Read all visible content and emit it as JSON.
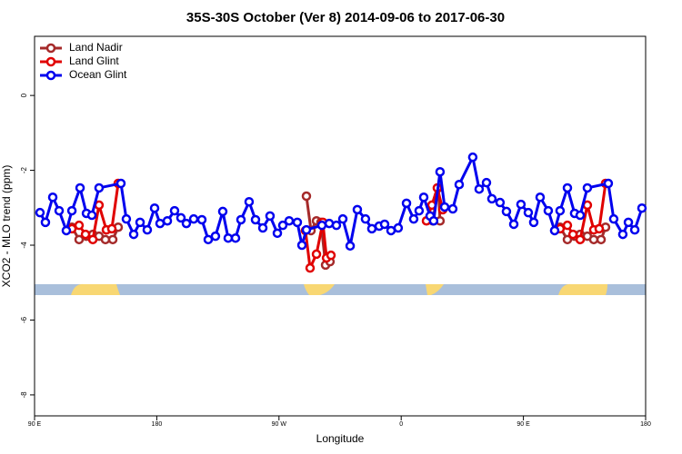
{
  "chart_data": {
    "type": "line",
    "title": "35S-30S October (Ver 8)   2014-09-06 to 2017-06-30",
    "x_label": "Longitude",
    "y_label": "XCO2 - MLO trend (ppm)",
    "xlim": [
      90,
      540
    ],
    "xticks": [
      {
        "value": 90,
        "label": "90 E"
      },
      {
        "value": 180,
        "label": "180"
      },
      {
        "value": 270,
        "label": "90 W"
      },
      {
        "value": 360,
        "label": "0"
      },
      {
        "value": 450,
        "label": "90 E"
      },
      {
        "value": 540,
        "label": "180"
      }
    ],
    "ylim": [
      -8.56,
      1.58
    ],
    "yticks": [
      0,
      -2,
      -4,
      -6,
      -8
    ],
    "legend": "top-left",
    "series": [
      {
        "name": "Land Nadir",
        "color": "#a52a2a",
        "x": [
          117.5,
          122.8,
          128.2,
          132.9,
          137.5,
          142.2,
          147.6,
          151.6,
          null,
          290.2,
          293.6,
          297.6,
          300.9,
          304.3,
          307.6,
          null,
          383.3,
          387.3,
          388.6,
          null,
          477.0,
          482.4,
          487.7,
          491.8,
          497.1,
          501.8,
          507.2,
          510.5
        ],
        "values": [
          -3.52,
          -3.85,
          -3.76,
          -3.71,
          -3.76,
          -3.85,
          -3.85,
          -3.52,
          null,
          -2.69,
          -3.61,
          -3.35,
          -3.39,
          -4.53,
          -4.44,
          null,
          -3.35,
          -2.47,
          -3.35,
          null,
          -3.52,
          -3.85,
          -3.76,
          -3.71,
          -3.76,
          -3.85,
          -3.85,
          -3.52
        ]
      },
      {
        "name": "Land Glint",
        "color": "#e00000",
        "x": [
          117.5,
          122.8,
          127.5,
          132.9,
          137.5,
          142.9,
          146.9,
          151.6,
          null,
          289.5,
          292.9,
          297.6,
          302.3,
          305.0,
          308.3,
          null,
          378.6,
          382.6,
          386.6,
          390.6,
          null,
          477.0,
          482.4,
          486.5,
          491.8,
          497.1,
          501.8,
          505.8,
          510.5
        ],
        "values": [
          -3.56,
          -3.47,
          -3.71,
          -3.85,
          -2.93,
          -3.59,
          -3.56,
          -2.35,
          null,
          -3.61,
          -4.61,
          -4.24,
          -3.39,
          -4.34,
          -4.27,
          null,
          -3.35,
          -2.93,
          -2.47,
          -3.05,
          null,
          -3.56,
          -3.47,
          -3.71,
          -3.85,
          -2.93,
          -3.59,
          -3.56,
          -2.35
        ]
      },
      {
        "name": "Ocean Glint",
        "color": "#0000ee",
        "x": [
          94.0,
          98.0,
          103.4,
          108.1,
          113.4,
          117.5,
          123.5,
          128.2,
          132.2,
          137.5,
          153.6,
          157.6,
          163.0,
          167.7,
          173.0,
          178.4,
          182.4,
          187.8,
          193.1,
          197.8,
          201.8,
          207.2,
          213.2,
          217.9,
          223.2,
          228.6,
          232.6,
          238.0,
          242.0,
          248.0,
          252.7,
          258.1,
          263.4,
          268.8,
          272.8,
          277.5,
          283.5,
          286.9,
          290.2,
          301.6,
          307.0,
          312.3,
          317.0,
          322.4,
          327.7,
          333.7,
          338.4,
          343.8,
          347.8,
          352.5,
          357.8,
          363.9,
          369.2,
          373.2,
          376.6,
          381.3,
          383.9,
          388.6,
          392.0,
          398.0,
          402.7,
          412.7,
          417.4,
          422.8,
          426.8,
          432.8,
          437.5,
          442.9,
          448.2,
          453.6,
          457.6,
          462.3,
          468.3,
          473.0,
          477.0,
          482.4,
          487.7,
          491.8,
          497.1,
          512.5,
          516.5,
          523.2,
          527.3,
          532.0,
          537.3
        ],
        "values": [
          -3.13,
          -3.39,
          -2.72,
          -3.08,
          -3.61,
          -3.08,
          -2.47,
          -3.15,
          -3.2,
          -2.47,
          -2.35,
          -3.3,
          -3.71,
          -3.39,
          -3.59,
          -3.01,
          -3.42,
          -3.35,
          -3.08,
          -3.27,
          -3.42,
          -3.3,
          -3.32,
          -3.85,
          -3.76,
          -3.1,
          -3.81,
          -3.81,
          -3.32,
          -2.84,
          -3.32,
          -3.54,
          -3.22,
          -3.68,
          -3.47,
          -3.35,
          -3.39,
          -4.0,
          -3.59,
          -3.47,
          -3.42,
          -3.47,
          -3.3,
          -4.02,
          -3.05,
          -3.3,
          -3.56,
          -3.49,
          -3.44,
          -3.61,
          -3.54,
          -2.88,
          -3.3,
          -3.08,
          -2.72,
          -3.22,
          -3.35,
          -2.04,
          -2.98,
          -3.03,
          -2.38,
          -1.65,
          -2.5,
          -2.33,
          -2.76,
          -2.86,
          -3.1,
          -3.44,
          -2.91,
          -3.13,
          -3.39,
          -2.72,
          -3.08,
          -3.61,
          -3.08,
          -2.47,
          -3.15,
          -3.2,
          -2.47,
          -2.35,
          -3.3,
          -3.71,
          -3.39,
          -3.59,
          -3.01
        ]
      }
    ]
  }
}
